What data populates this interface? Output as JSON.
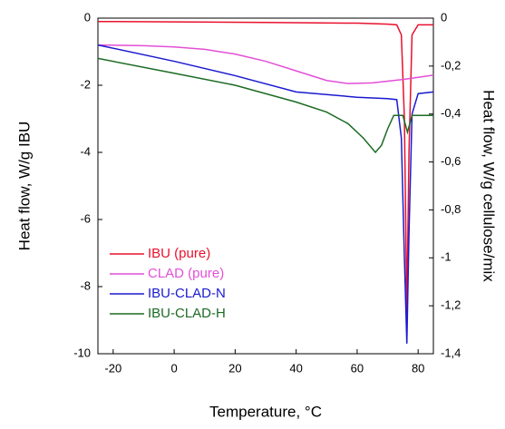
{
  "chart_data": {
    "type": "line",
    "xlabel": "Temperature, °C",
    "ylabel": "Heat flow, W/g IBU",
    "y2label": "Heat flow, W/g cellulose/mix",
    "xlim": [
      -25,
      85
    ],
    "xticks": [
      -20,
      0,
      20,
      40,
      60,
      80
    ],
    "ylim": [
      -10,
      0
    ],
    "yticks": [
      -10,
      -8,
      -6,
      -4,
      -2,
      0
    ],
    "y2lim": [
      -1.4,
      0
    ],
    "y2ticks": [
      {
        "value": -1.4,
        "label": "-1,4"
      },
      {
        "value": -1.2,
        "label": "-1,2"
      },
      -1,
      {
        "value": -0.8,
        "label": "-0,8"
      },
      {
        "value": -0.6,
        "label": "-0,6"
      },
      {
        "value": -0.4,
        "label": "-0,4"
      },
      {
        "value": -0.2,
        "label": "-0,2"
      },
      0
    ],
    "legend": "lower-left",
    "series": [
      {
        "name": "IBU (pure)",
        "color": "#e8112d",
        "x": [
          -25,
          0,
          30,
          60,
          70,
          73,
          74.5,
          75.5,
          76.3,
          77,
          78,
          80,
          85
        ],
        "values": [
          -0.1,
          -0.11,
          -0.13,
          -0.15,
          -0.18,
          -0.2,
          -0.5,
          -3,
          -8.8,
          -4,
          -0.5,
          -0.2,
          -0.2
        ]
      },
      {
        "name": "CLAD (pure)",
        "color": "#e24fd6",
        "axis": "y2",
        "x": [
          -25,
          -10,
          0,
          10,
          20,
          30,
          40,
          50,
          57,
          65,
          75,
          85
        ],
        "values": [
          -0.112,
          -0.115,
          -0.12,
          -0.13,
          -0.15,
          -0.18,
          -0.22,
          -0.26,
          -0.273,
          -0.27,
          -0.256,
          -0.238
        ]
      },
      {
        "name": "IBU-CLAD-N",
        "color": "#1a1ad0",
        "axis": "y2",
        "x": [
          -25,
          0,
          20,
          40,
          60,
          70,
          73,
          74.5,
          75.5,
          76.3,
          77,
          78,
          80,
          85
        ],
        "values": [
          -0.112,
          -0.18,
          -0.24,
          -0.308,
          -0.33,
          -0.336,
          -0.34,
          -0.5,
          -1.0,
          -1.358,
          -0.9,
          -0.4,
          -0.315,
          -0.308
        ]
      },
      {
        "name": "IBU-CLAD-H",
        "color": "#1c6b24",
        "axis": "y2",
        "x": [
          -25,
          0,
          20,
          40,
          50,
          57,
          62,
          66,
          68,
          70,
          72,
          75,
          76.5,
          78,
          85
        ],
        "values": [
          -0.168,
          -0.23,
          -0.28,
          -0.35,
          -0.392,
          -0.44,
          -0.5,
          -0.56,
          -0.53,
          -0.462,
          -0.406,
          -0.406,
          -0.476,
          -0.406,
          -0.406
        ]
      }
    ]
  }
}
